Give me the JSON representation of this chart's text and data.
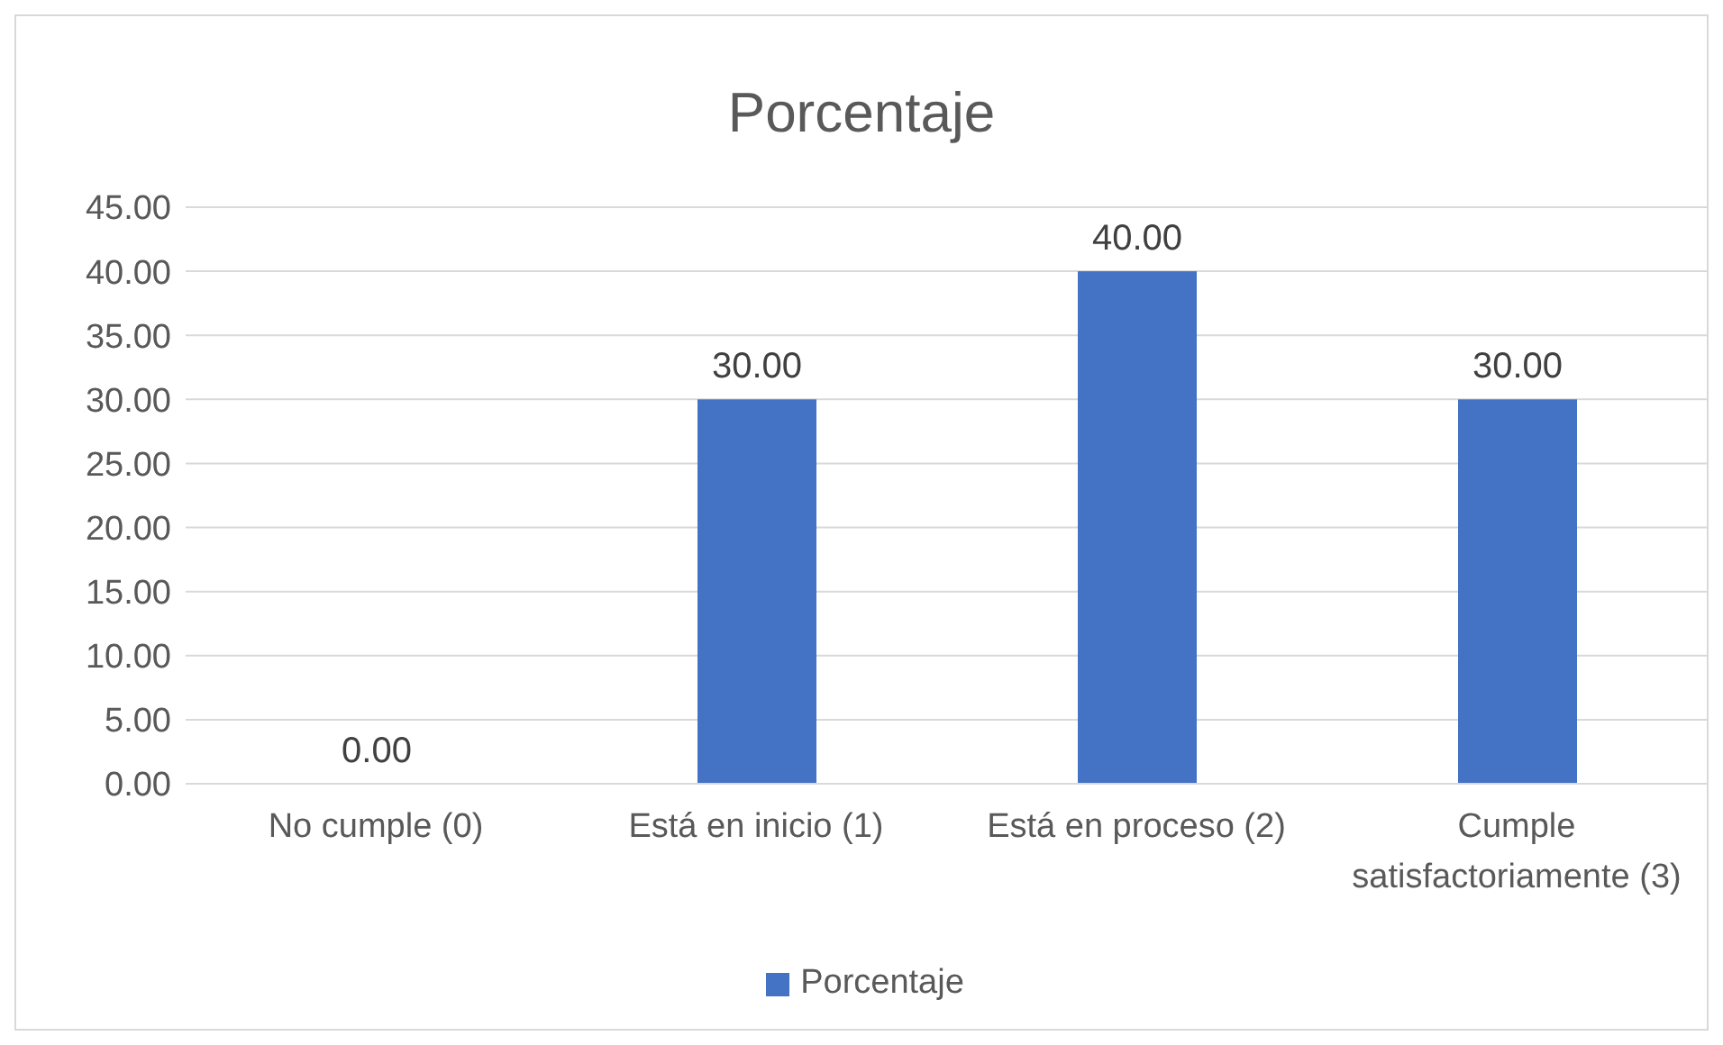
{
  "chart_data": {
    "type": "bar",
    "title": "Porcentaje",
    "categories": [
      "No cumple (0)",
      "Está en inicio (1)",
      "Está en proceso (2)",
      "Cumple satisfactoriamente (3)"
    ],
    "series": [
      {
        "name": "Porcentaje",
        "color": "#4472c4",
        "values": [
          0,
          30,
          40,
          30
        ],
        "value_labels": [
          "0.00",
          "30.00",
          "40.00",
          "30.00"
        ]
      }
    ],
    "ylim": [
      0,
      45
    ],
    "yticks": [
      {
        "value": 0,
        "label": "0.00"
      },
      {
        "value": 5,
        "label": "5.00"
      },
      {
        "value": 10,
        "label": "10.00"
      },
      {
        "value": 15,
        "label": "15.00"
      },
      {
        "value": 20,
        "label": "20.00"
      },
      {
        "value": 25,
        "label": "25.00"
      },
      {
        "value": 30,
        "label": "30.00"
      },
      {
        "value": 35,
        "label": "35.00"
      },
      {
        "value": 40,
        "label": "40.00"
      },
      {
        "value": 45,
        "label": "45.00"
      }
    ],
    "grid": "y",
    "legend": "bottom"
  }
}
